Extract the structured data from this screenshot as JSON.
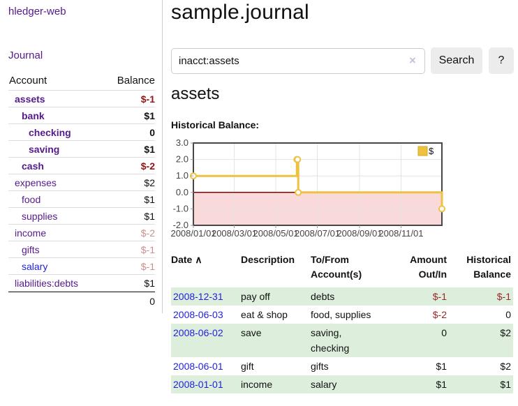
{
  "app": {
    "title": "hledger-web"
  },
  "sidebar": {
    "journal_label": "Journal",
    "accounts": {
      "col_account": "Account",
      "col_balance": "Balance",
      "rows": [
        {
          "name": "assets",
          "balance": "$-1"
        },
        {
          "name": "bank",
          "balance": "$1"
        },
        {
          "name": "checking",
          "balance": "0"
        },
        {
          "name": "saving",
          "balance": "$1"
        },
        {
          "name": "cash",
          "balance": "$-2"
        },
        {
          "name": "expenses",
          "balance": "$2"
        },
        {
          "name": "food",
          "balance": "$1"
        },
        {
          "name": "supplies",
          "balance": "$1"
        },
        {
          "name": "income",
          "balance": "$-2"
        },
        {
          "name": "gifts",
          "balance": "$-1"
        },
        {
          "name": "salary",
          "balance": "$-1"
        },
        {
          "name": "liabilities:debts",
          "balance": "$1"
        }
      ],
      "total": "0"
    }
  },
  "header": {
    "title": "sample.journal"
  },
  "search": {
    "value": "inacct:assets",
    "clear_icon": "×",
    "search_button": "Search",
    "help_button": "?"
  },
  "account_page": {
    "title": "assets",
    "chart_title": "Historical Balance:"
  },
  "chart_data": {
    "type": "line",
    "step": true,
    "title": "Historical Balance:",
    "series": [
      {
        "name": "$",
        "color": "#edc240",
        "points": [
          [
            "2008-01-01",
            1
          ],
          [
            "2008-06-01",
            2
          ],
          [
            "2008-06-02",
            2
          ],
          [
            "2008-06-03",
            0
          ],
          [
            "2008-12-31",
            -1
          ]
        ]
      }
    ],
    "xlim": [
      "2008-01-01",
      "2008-12-31"
    ],
    "ylim": [
      -2,
      3
    ],
    "y_ticks": [
      "3.0",
      "2.0",
      "1.0",
      "0.0",
      "-1.0",
      "-2.0"
    ],
    "x_ticks": [
      "2008/01/01",
      "2008/03/01",
      "2008/05/01",
      "2008/07/01",
      "2008/09/01",
      "2008/11/01"
    ],
    "legend": {
      "label": "$",
      "position": "top-right"
    },
    "grid": true,
    "colors": {
      "negative_fill": "#f9d9d9",
      "zero_line": "#8b0000",
      "grid": "#e3e3e3",
      "border": "#474747",
      "legend_border": "#d3a822",
      "tick_text": "#444"
    }
  },
  "register": {
    "sort_indicator": "∧",
    "columns": {
      "date": "Date",
      "description": "Description",
      "accounts": "To/From Account(s)",
      "amount": "Amount Out/In",
      "balance": "Historical Balance"
    },
    "rows": [
      {
        "date": "2008-12-31",
        "description": "pay off",
        "accounts": "debts",
        "amount": "$-1",
        "balance": "$-1"
      },
      {
        "date": "2008-06-03",
        "description": "eat & shop",
        "accounts": "food, supplies",
        "amount": "$-2",
        "balance": "0"
      },
      {
        "date": "2008-06-02",
        "description": "save",
        "accounts": "saving, checking",
        "amount": "0",
        "balance": "$2"
      },
      {
        "date": "2008-06-01",
        "description": "gift",
        "accounts": "gifts",
        "amount": "$1",
        "balance": "$2"
      },
      {
        "date": "2008-01-01",
        "description": "income",
        "accounts": "salary",
        "amount": "$1",
        "balance": "$1"
      }
    ]
  }
}
